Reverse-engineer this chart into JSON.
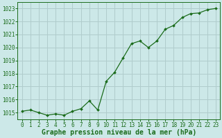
{
  "x": [
    0,
    1,
    2,
    3,
    4,
    5,
    6,
    7,
    8,
    9,
    10,
    11,
    12,
    13,
    14,
    15,
    16,
    17,
    18,
    19,
    20,
    21,
    22,
    23
  ],
  "y": [
    1015.1,
    1015.2,
    1015.0,
    1014.8,
    1014.9,
    1014.8,
    1015.1,
    1015.3,
    1015.9,
    1015.2,
    1017.4,
    1018.1,
    1019.2,
    1020.3,
    1020.5,
    1020.0,
    1020.5,
    1021.4,
    1021.7,
    1022.3,
    1022.6,
    1022.65,
    1022.9,
    1023.0
  ],
  "line_color": "#1a6b1a",
  "marker_color": "#1a6b1a",
  "bg_color": "#cce8e8",
  "grid_color": "#b0cccc",
  "title": "Graphe pression niveau de la mer (hPa)",
  "title_color": "#1a6b1a",
  "ylim": [
    1014.5,
    1023.5
  ],
  "yticks": [
    1015,
    1016,
    1017,
    1018,
    1019,
    1020,
    1021,
    1022,
    1023
  ],
  "xlim": [
    -0.5,
    23.5
  ],
  "xticks": [
    0,
    1,
    2,
    3,
    4,
    5,
    6,
    7,
    8,
    9,
    10,
    11,
    12,
    13,
    14,
    15,
    16,
    17,
    18,
    19,
    20,
    21,
    22,
    23
  ],
  "tick_color": "#1a6b1a",
  "tick_fontsize": 5.5,
  "title_fontsize": 7.0
}
